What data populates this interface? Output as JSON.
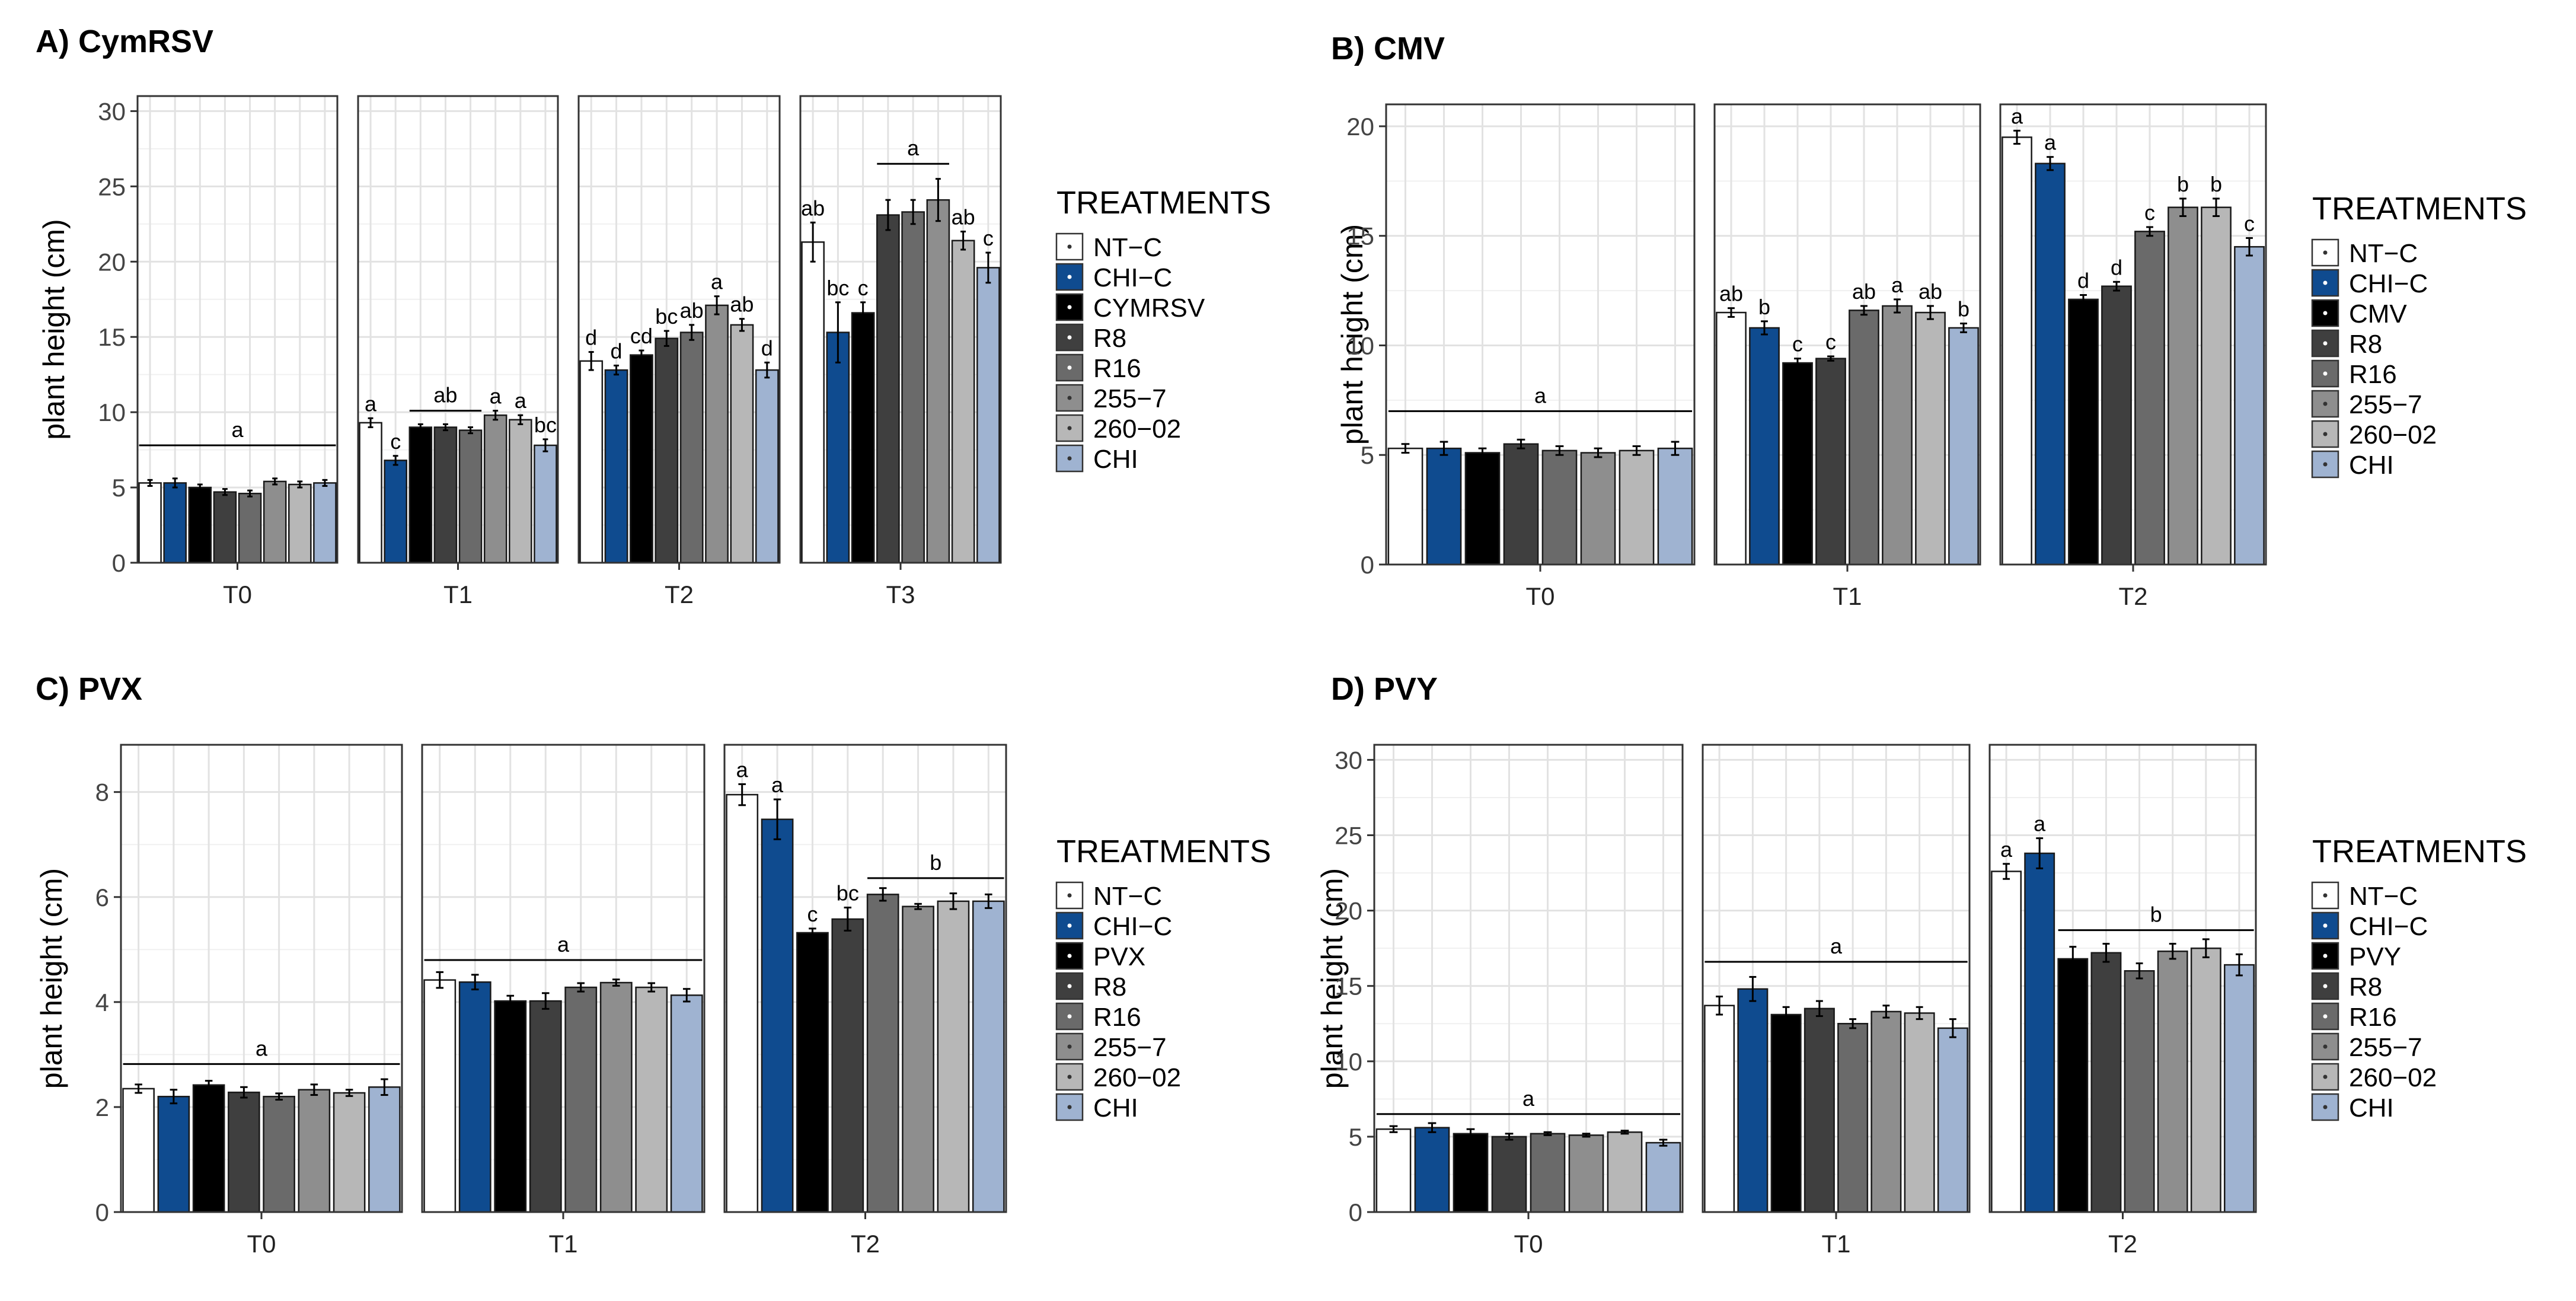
{
  "treatment_colors": [
    "#ffffff",
    "#0f4b8f",
    "#000000",
    "#3f3f3f",
    "#6a6a6a",
    "#8e8e8e",
    "#b7b7b7",
    "#9fb3d1"
  ],
  "chart_data": [
    {
      "type": "bar",
      "title": "A) CymRSV",
      "ylabel": "plant height (cm)",
      "ylim": [
        0,
        31
      ],
      "yticks": [
        0,
        5,
        10,
        15,
        20,
        25,
        30
      ],
      "legend_title": "TREATMENTS",
      "legend": [
        "NT−C",
        "CHI−C",
        "CYMRSV",
        "R8",
        "R16",
        "255−7",
        "260−02",
        "CHI"
      ],
      "facets": [
        {
          "label": "T0",
          "values": [
            5.3,
            5.3,
            5.0,
            4.7,
            4.6,
            5.4,
            5.2,
            5.3
          ],
          "errors": [
            0.2,
            0.3,
            0.2,
            0.2,
            0.2,
            0.2,
            0.2,
            0.2
          ],
          "letters": [],
          "group": {
            "label": "a",
            "from": 0,
            "to": 7,
            "y": 7.8
          }
        },
        {
          "label": "T1",
          "values": [
            9.3,
            6.8,
            9.0,
            9.0,
            8.8,
            9.8,
            9.5,
            7.8
          ],
          "errors": [
            0.3,
            0.3,
            0.2,
            0.2,
            0.2,
            0.3,
            0.3,
            0.4
          ],
          "letters": [
            "a",
            "c",
            "",
            "",
            "",
            "a",
            "a",
            "bc"
          ],
          "group": {
            "label": "ab",
            "from": 2,
            "to": 4,
            "y": 10.1
          }
        },
        {
          "label": "T2",
          "values": [
            13.4,
            12.8,
            13.8,
            14.9,
            15.3,
            17.1,
            15.8,
            12.8
          ],
          "errors": [
            0.6,
            0.3,
            0.3,
            0.5,
            0.5,
            0.6,
            0.4,
            0.5
          ],
          "letters": [
            "d",
            "d",
            "cd",
            "bc",
            "ab",
            "a",
            "ab",
            "d"
          ],
          "group": null
        },
        {
          "label": "T3",
          "values": [
            21.3,
            15.3,
            16.6,
            23.1,
            23.3,
            24.1,
            21.4,
            19.6
          ],
          "errors": [
            1.3,
            2.0,
            0.7,
            1.0,
            0.8,
            1.4,
            0.6,
            1.0
          ],
          "letters": [
            "ab",
            "bc",
            "c",
            "",
            "",
            "",
            "ab",
            "c"
          ],
          "group": {
            "label": "a",
            "from": 3,
            "to": 5,
            "y": 26.5
          }
        }
      ]
    },
    {
      "type": "bar",
      "title": "B) CMV",
      "ylabel": "plant height (cm)",
      "ylim": [
        0,
        21
      ],
      "yticks": [
        0,
        5,
        10,
        15,
        20
      ],
      "legend_title": "TREATMENTS",
      "legend": [
        "NT−C",
        "CHI−C",
        "CMV",
        "R8",
        "R16",
        "255−7",
        "260−02",
        "CHI"
      ],
      "facets": [
        {
          "label": "T0",
          "values": [
            5.3,
            5.3,
            5.1,
            5.5,
            5.2,
            5.1,
            5.2,
            5.3
          ],
          "errors": [
            0.2,
            0.3,
            0.2,
            0.2,
            0.2,
            0.2,
            0.2,
            0.3
          ],
          "letters": [],
          "group": {
            "label": "a",
            "from": 0,
            "to": 7,
            "y": 7.0
          }
        },
        {
          "label": "T1",
          "values": [
            11.5,
            10.8,
            9.2,
            9.4,
            11.6,
            11.8,
            11.5,
            10.8
          ],
          "errors": [
            0.2,
            0.3,
            0.2,
            0.1,
            0.2,
            0.3,
            0.3,
            0.2
          ],
          "letters": [
            "ab",
            "b",
            "c",
            "c",
            "ab",
            "a",
            "ab",
            "b"
          ],
          "group": null
        },
        {
          "label": "T2",
          "values": [
            19.5,
            18.3,
            12.1,
            12.7,
            15.2,
            16.3,
            16.3,
            14.5
          ],
          "errors": [
            0.3,
            0.3,
            0.2,
            0.2,
            0.2,
            0.4,
            0.4,
            0.4
          ],
          "letters": [
            "a",
            "a",
            "d",
            "d",
            "c",
            "b",
            "b",
            "c"
          ],
          "group": null
        }
      ]
    },
    {
      "type": "bar",
      "title": "C) PVX",
      "ylabel": "plant height (cm)",
      "ylim": [
        0,
        8.9
      ],
      "yticks": [
        0,
        2,
        4,
        6,
        8
      ],
      "legend_title": "TREATMENTS",
      "legend": [
        "NT−C",
        "CHI−C",
        "PVX",
        "R8",
        "R16",
        "255−7",
        "260−02",
        "CHI"
      ],
      "facets": [
        {
          "label": "T0",
          "values": [
            2.35,
            2.2,
            2.42,
            2.28,
            2.2,
            2.33,
            2.27,
            2.38
          ],
          "errors": [
            0.08,
            0.13,
            0.08,
            0.1,
            0.06,
            0.1,
            0.06,
            0.15
          ],
          "letters": [],
          "group": {
            "label": "a",
            "from": 0,
            "to": 7,
            "y": 2.82
          }
        },
        {
          "label": "T1",
          "values": [
            4.42,
            4.38,
            4.02,
            4.02,
            4.28,
            4.37,
            4.28,
            4.13
          ],
          "errors": [
            0.15,
            0.14,
            0.1,
            0.15,
            0.08,
            0.06,
            0.08,
            0.12
          ],
          "letters": [],
          "group": {
            "label": "a",
            "from": 0,
            "to": 7,
            "y": 4.8
          }
        },
        {
          "label": "T2",
          "values": [
            7.95,
            7.48,
            5.32,
            5.58,
            6.05,
            5.82,
            5.92,
            5.92
          ],
          "errors": [
            0.2,
            0.38,
            0.08,
            0.22,
            0.12,
            0.05,
            0.15,
            0.13
          ],
          "letters": [
            "a",
            "a",
            "c",
            "bc",
            "",
            "",
            "",
            ""
          ],
          "group": {
            "label": "b",
            "from": 4,
            "to": 7,
            "y": 6.36
          }
        }
      ]
    },
    {
      "type": "bar",
      "title": "D) PVY",
      "ylabel": "plant height (cm)",
      "ylim": [
        0,
        31
      ],
      "yticks": [
        0,
        5,
        10,
        15,
        20,
        25,
        30
      ],
      "legend_title": "TREATMENTS",
      "legend": [
        "NT−C",
        "CHI−C",
        "PVY",
        "R8",
        "R16",
        "255−7",
        "260−02",
        "CHI"
      ],
      "facets": [
        {
          "label": "T0",
          "values": [
            5.5,
            5.6,
            5.2,
            5.0,
            5.2,
            5.1,
            5.3,
            4.6
          ],
          "errors": [
            0.2,
            0.3,
            0.3,
            0.2,
            0.1,
            0.1,
            0.1,
            0.2
          ],
          "letters": [],
          "group": {
            "label": "a",
            "from": 0,
            "to": 7,
            "y": 6.5
          }
        },
        {
          "label": "T1",
          "values": [
            13.7,
            14.8,
            13.1,
            13.5,
            12.5,
            13.3,
            13.2,
            12.2
          ],
          "errors": [
            0.6,
            0.8,
            0.5,
            0.5,
            0.3,
            0.4,
            0.4,
            0.6
          ],
          "letters": [],
          "group": {
            "label": "a",
            "from": 0,
            "to": 7,
            "y": 16.6
          }
        },
        {
          "label": "T2",
          "values": [
            22.6,
            23.8,
            16.8,
            17.2,
            16.0,
            17.3,
            17.5,
            16.4
          ],
          "errors": [
            0.5,
            1.0,
            0.8,
            0.6,
            0.5,
            0.5,
            0.6,
            0.7
          ],
          "letters": [
            "a",
            "a",
            "",
            "",
            "",
            "",
            "",
            ""
          ],
          "group": {
            "label": "b",
            "from": 2,
            "to": 7,
            "y": 18.7
          }
        }
      ]
    }
  ]
}
